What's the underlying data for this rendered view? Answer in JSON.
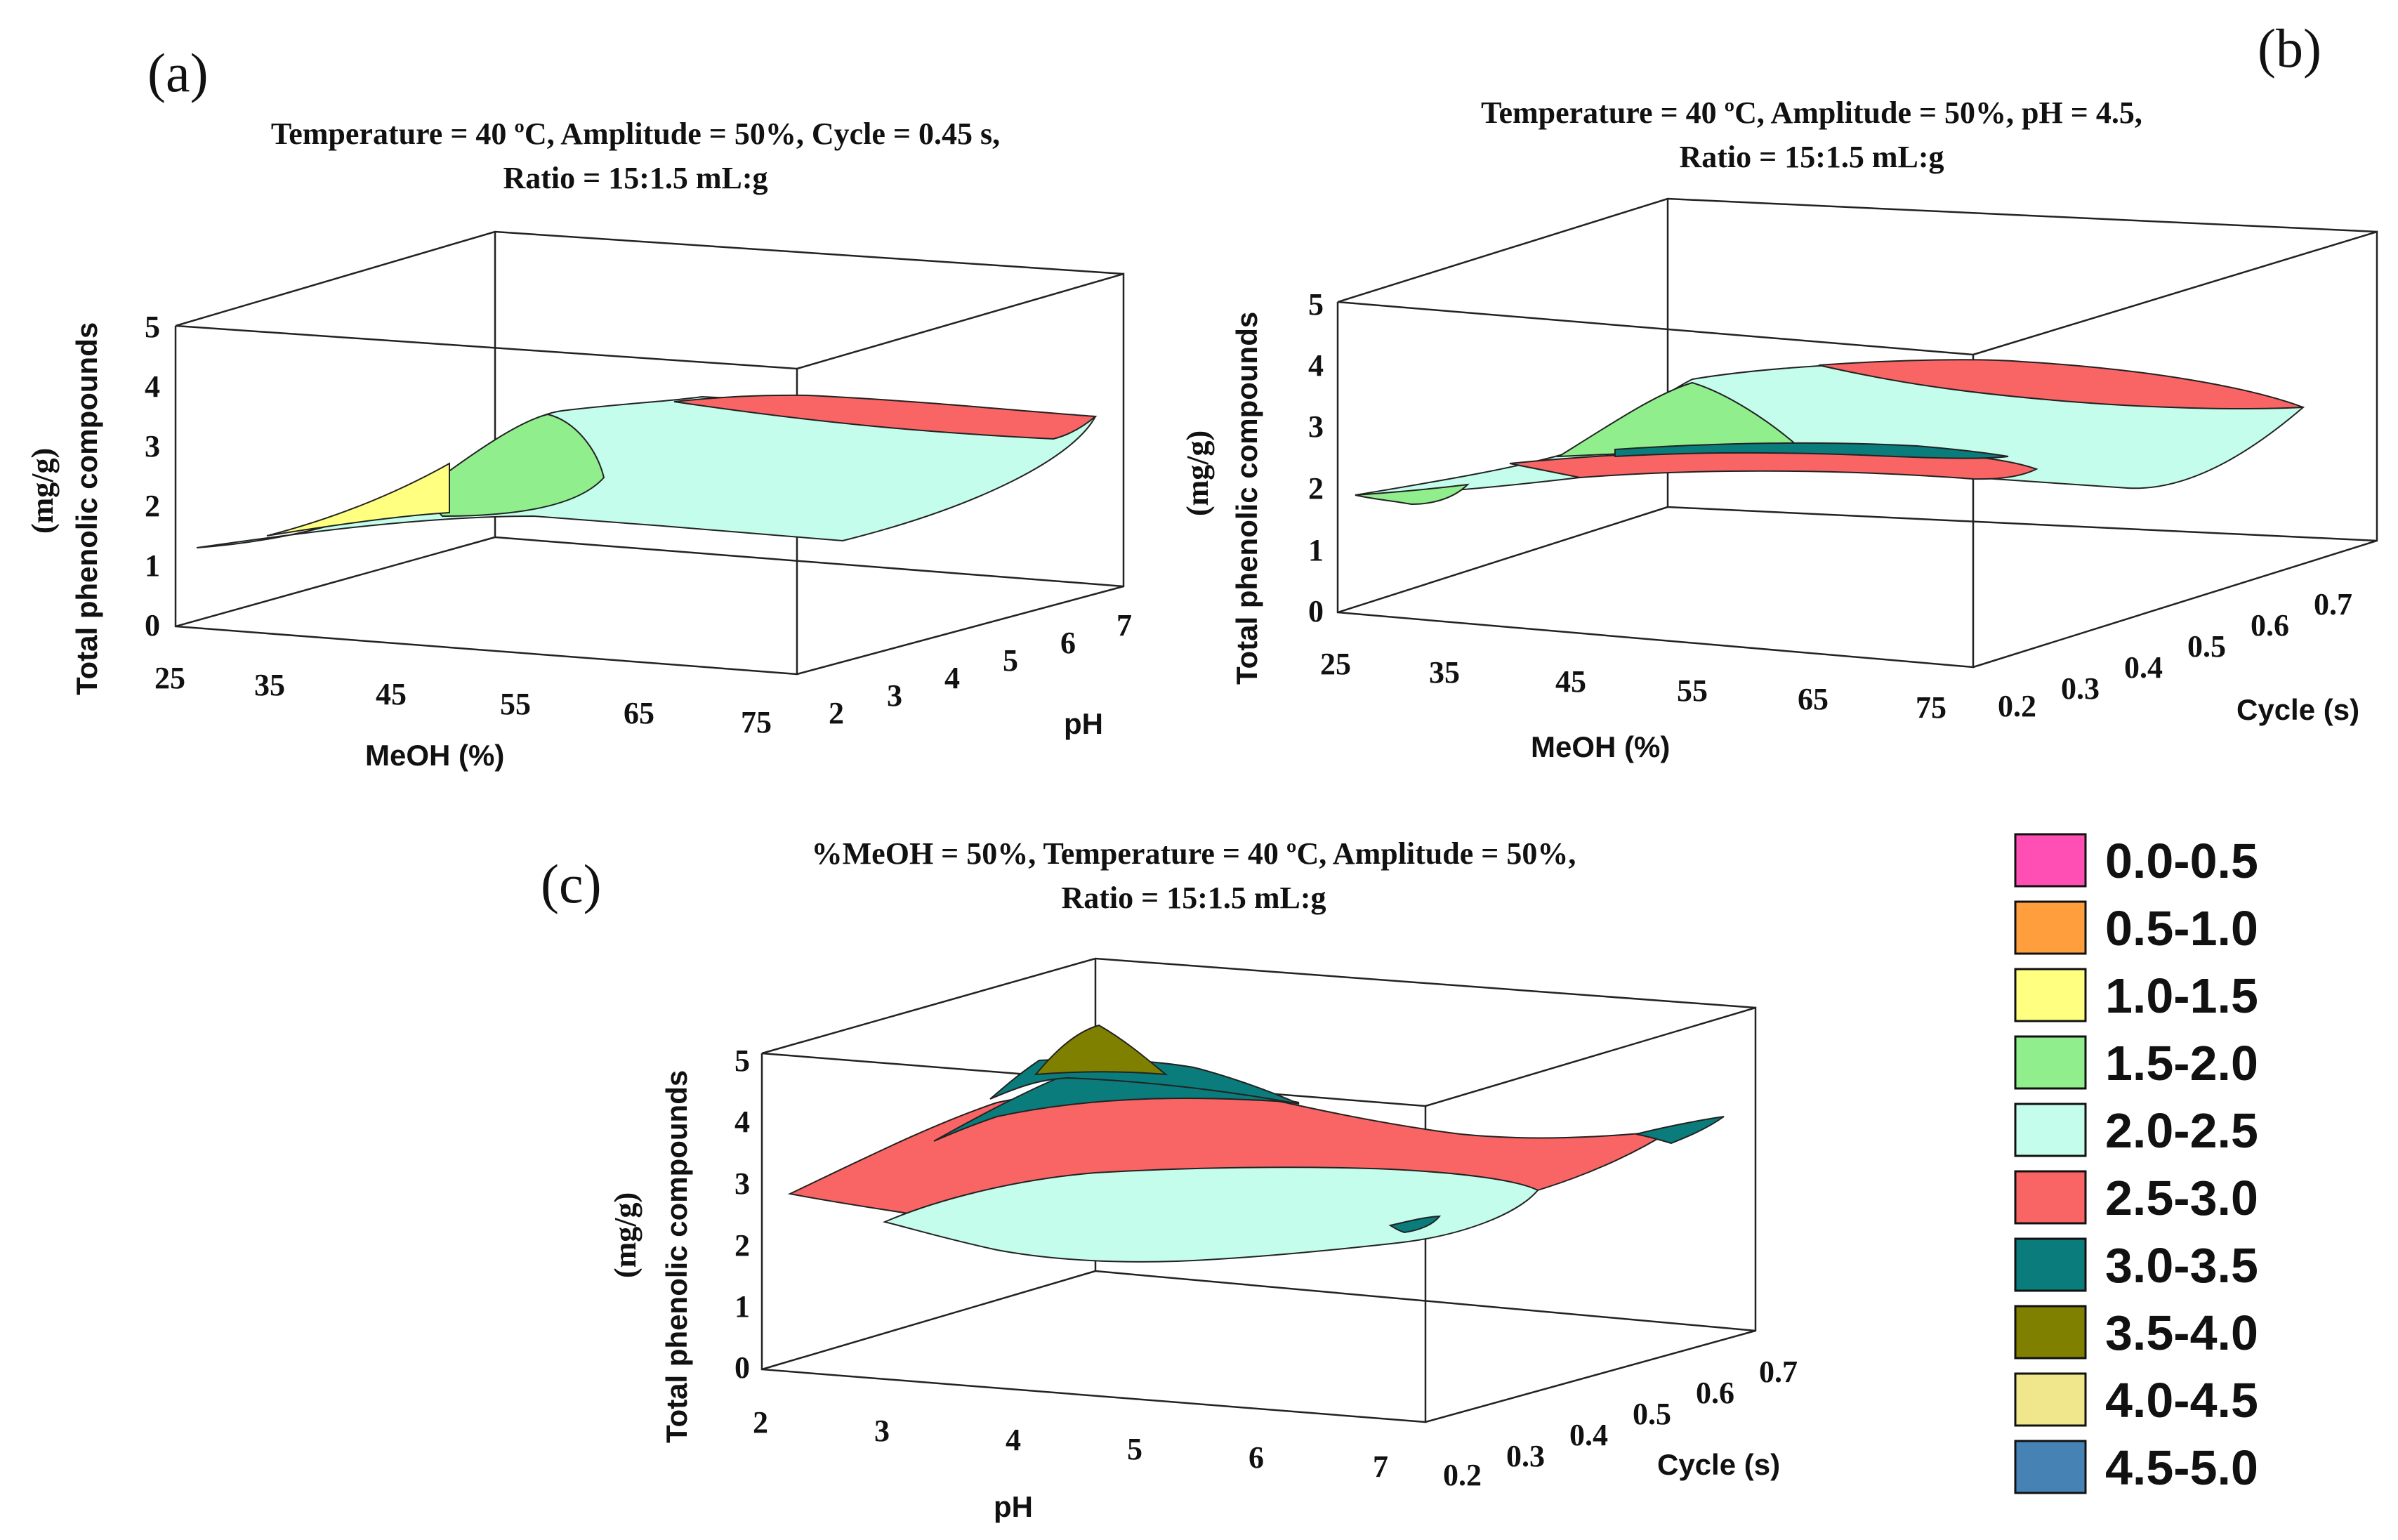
{
  "chart_data": [
    {
      "type": "surface",
      "panel_label": "(a)",
      "title_lines": [
        "Temperature = 40 ºC, Amplitude = 50%, Cycle = 0.45 s,",
        "Ratio = 15:1.5 mL:g"
      ],
      "xlabel": "MeOH (%)",
      "ylabel": "pH",
      "zlabel": "Total phenolic compounds",
      "zunit": "(mg/g)",
      "x_ticks": [
        "25",
        "35",
        "45",
        "55",
        "65",
        "75"
      ],
      "y_ticks": [
        "2",
        "3",
        "4",
        "5",
        "6",
        "7"
      ],
      "z_ticks": [
        "0",
        "1",
        "2",
        "3",
        "4",
        "5"
      ],
      "xlim": [
        25,
        75
      ],
      "ylim": [
        2,
        7
      ],
      "zlim": [
        0,
        5
      ]
    },
    {
      "type": "surface",
      "panel_label": "(b)",
      "title_lines": [
        "Temperature = 40 ºC, Amplitude = 50%, pH = 4.5,",
        "Ratio = 15:1.5 mL:g"
      ],
      "xlabel": "MeOH (%)",
      "ylabel": "Cycle (s)",
      "zlabel": "Total phenolic compounds",
      "zunit": "(mg/g)",
      "x_ticks": [
        "25",
        "35",
        "45",
        "55",
        "65",
        "75"
      ],
      "y_ticks": [
        "0.2",
        "0.3",
        "0.4",
        "0.5",
        "0.6",
        "0.7"
      ],
      "z_ticks": [
        "0",
        "1",
        "2",
        "3",
        "4",
        "5"
      ],
      "xlim": [
        25,
        75
      ],
      "ylim": [
        0.2,
        0.7
      ],
      "zlim": [
        0,
        5
      ]
    },
    {
      "type": "surface",
      "panel_label": "(c)",
      "title_lines": [
        "%MeOH = 50%, Temperature = 40 ºC, Amplitude = 50%,",
        "Ratio = 15:1.5 mL:g"
      ],
      "xlabel": "pH",
      "ylabel": "Cycle (s)",
      "zlabel": "Total phenolic compounds",
      "zunit": "(mg/g)",
      "x_ticks": [
        "2",
        "3",
        "4",
        "5",
        "6",
        "7"
      ],
      "y_ticks": [
        "0.2",
        "0.3",
        "0.4",
        "0.5",
        "0.6",
        "0.7"
      ],
      "z_ticks": [
        "0",
        "1",
        "2",
        "3",
        "4",
        "5"
      ],
      "xlim": [
        2,
        7
      ],
      "ylim": [
        0.2,
        0.7
      ],
      "zlim": [
        0,
        5
      ]
    }
  ],
  "legend": [
    {
      "label": "0.0-0.5",
      "color": "#ff4fb4"
    },
    {
      "label": "0.5-1.0",
      "color": "#ff9e3d"
    },
    {
      "label": "1.0-1.5",
      "color": "#ffff80"
    },
    {
      "label": "1.5-2.0",
      "color": "#90ee8c"
    },
    {
      "label": "2.0-2.5",
      "color": "#c4fdec"
    },
    {
      "label": "2.5-3.0",
      "color": "#f96464"
    },
    {
      "label": "3.0-3.5",
      "color": "#0a7c7c"
    },
    {
      "label": "3.5-4.0",
      "color": "#808000"
    },
    {
      "label": "4.0-4.5",
      "color": "#f0e68c"
    },
    {
      "label": "4.5-5.0",
      "color": "#4682b4"
    }
  ]
}
